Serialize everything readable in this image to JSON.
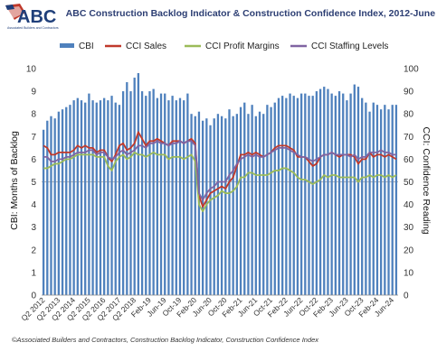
{
  "logo": {
    "text": "ABC",
    "tagline": "Associated Builders and Contractors"
  },
  "footer": "©Associated Builders and Contractors, Construction Backlog Indicator, Construction Confidence Index",
  "chart_data": {
    "type": "bar+line",
    "title": "ABC Construction Backlog Indicator & Construction Confidence Index, 2012-June 2024",
    "ylabel_left": "CBI: Months of Backlog",
    "ylabel_right": "CCI: Confidence Reading",
    "ylim_left": [
      0,
      10
    ],
    "ylim_right": [
      0,
      100
    ],
    "y_ticks_left": [
      0,
      1,
      2,
      3,
      4,
      5,
      6,
      7,
      8,
      9,
      10
    ],
    "y_ticks_right": [
      0,
      10,
      20,
      30,
      40,
      50,
      60,
      70,
      80,
      90,
      100
    ],
    "reference_line_right": 50,
    "legend_placement": "top",
    "colors": {
      "CBI": "#4f81bd",
      "CCI Sales": "#c0392b",
      "CCI Profit Margins": "#9bbb59",
      "CCI Staffing Levels": "#8064a2"
    },
    "x_tick_labels": [
      "Q2 2012",
      "Q2 2013",
      "Q2 2014",
      "Q2 2015",
      "Q2 2016",
      "Q2 2017",
      "Q2 2018",
      "Feb-19",
      "Jun-19",
      "Oct-19",
      "Feb-20",
      "Jun-20",
      "Oct-20",
      "Feb-21",
      "Jun-21",
      "Oct-21",
      "Feb-22",
      "Jun-22",
      "Oct-22",
      "Feb-23",
      "Jun-23",
      "Oct-23",
      "Feb-24",
      "Jun-24"
    ],
    "x_tick_positions": [
      0,
      4,
      8,
      12,
      16,
      20,
      24,
      28,
      32,
      36,
      40,
      44,
      48,
      52,
      56,
      60,
      64,
      68,
      72,
      76,
      80,
      84,
      88,
      92
    ],
    "series": [
      {
        "name": "CBI",
        "type": "bar",
        "values": [
          7.3,
          7.7,
          7.9,
          7.8,
          8.1,
          8.2,
          8.3,
          8.4,
          8.6,
          8.7,
          8.6,
          8.5,
          8.9,
          8.6,
          8.5,
          8.6,
          8.7,
          8.6,
          8.8,
          8.5,
          8.4,
          9.0,
          9.4,
          9.0,
          9.6,
          9.8,
          9.0,
          8.8,
          9.0,
          9.1,
          8.7,
          8.9,
          8.9,
          8.6,
          8.8,
          8.6,
          8.7,
          8.6,
          8.9,
          8.0,
          7.9,
          8.1,
          7.7,
          7.8,
          7.5,
          7.8,
          8.0,
          7.9,
          7.8,
          8.2,
          7.9,
          8.0,
          8.3,
          8.5,
          8.0,
          8.4,
          7.9,
          8.1,
          8.0,
          8.4,
          8.3,
          8.5,
          8.7,
          8.8,
          8.7,
          8.9,
          8.8,
          8.7,
          8.9,
          8.9,
          8.8,
          8.8,
          9.0,
          9.1,
          9.2,
          9.1,
          8.9,
          8.8,
          9.0,
          8.9,
          8.6,
          8.9,
          9.3,
          9.2,
          8.7,
          8.5,
          8.1,
          8.5,
          8.4,
          8.2,
          8.4,
          8.2,
          8.4,
          8.4
        ]
      },
      {
        "name": "CCI Sales",
        "type": "line",
        "values": [
          66,
          65,
          62,
          62,
          63,
          63,
          63,
          63,
          64,
          66,
          65,
          66,
          65,
          65,
          63,
          64,
          64,
          61,
          59,
          62,
          66,
          67,
          64,
          65,
          67,
          72,
          69,
          66,
          68,
          68,
          69,
          68,
          67,
          66,
          68,
          68,
          68,
          67,
          68,
          69,
          67,
          44,
          39,
          42,
          45,
          46,
          47,
          48,
          47,
          50,
          52,
          57,
          62,
          62,
          63,
          62,
          63,
          62,
          61,
          62,
          63,
          65,
          66,
          66,
          66,
          65,
          64,
          61,
          61,
          61,
          59,
          57,
          58,
          61,
          62,
          62,
          63,
          62,
          61,
          62,
          62,
          62,
          61,
          58,
          60,
          60,
          63,
          61,
          62,
          62,
          61,
          62,
          61,
          60
        ]
      },
      {
        "name": "CCI Profit Margins",
        "type": "line",
        "values": [
          56,
          56,
          57,
          58,
          58,
          59,
          60,
          60,
          61,
          62,
          62,
          62,
          62,
          62,
          61,
          61,
          61,
          57,
          55,
          59,
          61,
          62,
          60,
          61,
          63,
          62,
          62,
          61,
          62,
          63,
          62,
          62,
          62,
          60,
          61,
          61,
          61,
          60,
          61,
          62,
          59,
          40,
          37,
          40,
          42,
          43,
          44,
          46,
          45,
          45,
          46,
          48,
          52,
          52,
          54,
          54,
          53,
          53,
          53,
          53,
          54,
          55,
          55,
          56,
          56,
          55,
          54,
          52,
          51,
          51,
          50,
          49,
          50,
          51,
          53,
          52,
          53,
          53,
          52,
          52,
          52,
          52,
          52,
          50,
          52,
          52,
          53,
          52,
          53,
          53,
          52,
          53,
          52,
          53
        ]
      },
      {
        "name": "CCI Staffing Levels",
        "type": "line",
        "values": [
          61,
          61,
          59,
          59,
          60,
          60,
          61,
          61,
          62,
          63,
          63,
          63,
          64,
          64,
          62,
          63,
          63,
          61,
          60,
          61,
          63,
          64,
          62,
          63,
          64,
          66,
          66,
          65,
          67,
          67,
          68,
          67,
          67,
          66,
          67,
          67,
          68,
          67,
          68,
          68,
          66,
          45,
          42,
          45,
          47,
          48,
          50,
          50,
          50,
          53,
          55,
          58,
          60,
          61,
          62,
          61,
          62,
          61,
          61,
          62,
          63,
          64,
          65,
          65,
          65,
          64,
          63,
          62,
          61,
          61,
          60,
          59,
          60,
          61,
          62,
          62,
          63,
          62,
          62,
          62,
          62,
          61,
          62,
          60,
          61,
          61,
          63,
          63,
          63,
          64,
          63,
          63,
          62,
          62
        ]
      }
    ]
  }
}
